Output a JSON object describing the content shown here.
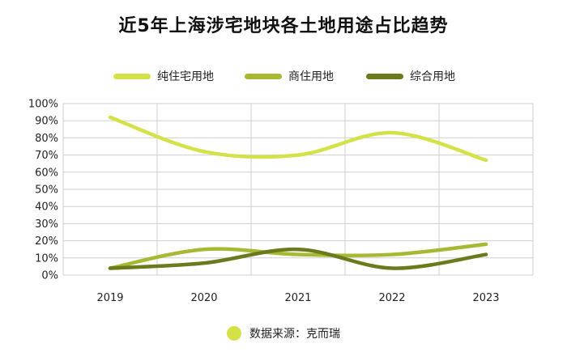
{
  "chart_data": {
    "type": "line",
    "title": "近5年上海涉宅地块各土地用途占比趋势",
    "categories": [
      "2019",
      "2020",
      "2021",
      "2022",
      "2023"
    ],
    "yticks": [
      "0%",
      "10%",
      "20%",
      "30%",
      "40%",
      "50%",
      "60%",
      "70%",
      "80%",
      "90%",
      "100%"
    ],
    "ylim": [
      0,
      100
    ],
    "grid": true,
    "legend_position": "top",
    "series": [
      {
        "name": "纯住宅用地",
        "color": "#d4e24a",
        "values": [
          92,
          72,
          70,
          83,
          67
        ]
      },
      {
        "name": "商住用地",
        "color": "#a9b832",
        "values": [
          4,
          15,
          12,
          12,
          18
        ]
      },
      {
        "name": "综合用地",
        "color": "#6b7a1c",
        "values": [
          4,
          7,
          15,
          4,
          12
        ]
      }
    ]
  },
  "source": {
    "text": "数据来源：克而瑞",
    "dot_color": "#d4e24a"
  }
}
